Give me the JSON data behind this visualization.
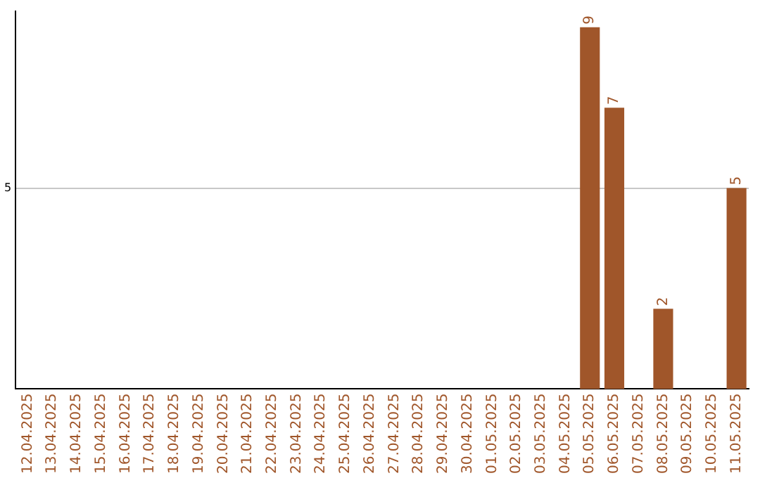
{
  "chart_data": {
    "type": "bar",
    "categories": [
      "12.04.2025",
      "13.04.2025",
      "14.04.2025",
      "15.04.2025",
      "16.04.2025",
      "17.04.2025",
      "18.04.2025",
      "19.04.2025",
      "20.04.2025",
      "21.04.2025",
      "22.04.2025",
      "23.04.2025",
      "24.04.2025",
      "25.04.2025",
      "26.04.2025",
      "27.04.2025",
      "28.04.2025",
      "29.04.2025",
      "30.04.2025",
      "01.05.2025",
      "02.05.2025",
      "03.05.2025",
      "04.05.2025",
      "05.05.2025",
      "06.05.2025",
      "07.05.2025",
      "08.05.2025",
      "09.05.2025",
      "10.05.2025",
      "11.05.2025"
    ],
    "values": [
      null,
      null,
      null,
      null,
      null,
      null,
      null,
      null,
      null,
      null,
      null,
      null,
      null,
      null,
      null,
      null,
      null,
      null,
      null,
      null,
      null,
      null,
      null,
      9,
      7,
      null,
      2,
      null,
      null,
      5
    ],
    "color": "#a0562a",
    "ylim": [
      0,
      9.4
    ],
    "yticks": [
      5
    ],
    "grid": "y",
    "data_labels": true
  }
}
